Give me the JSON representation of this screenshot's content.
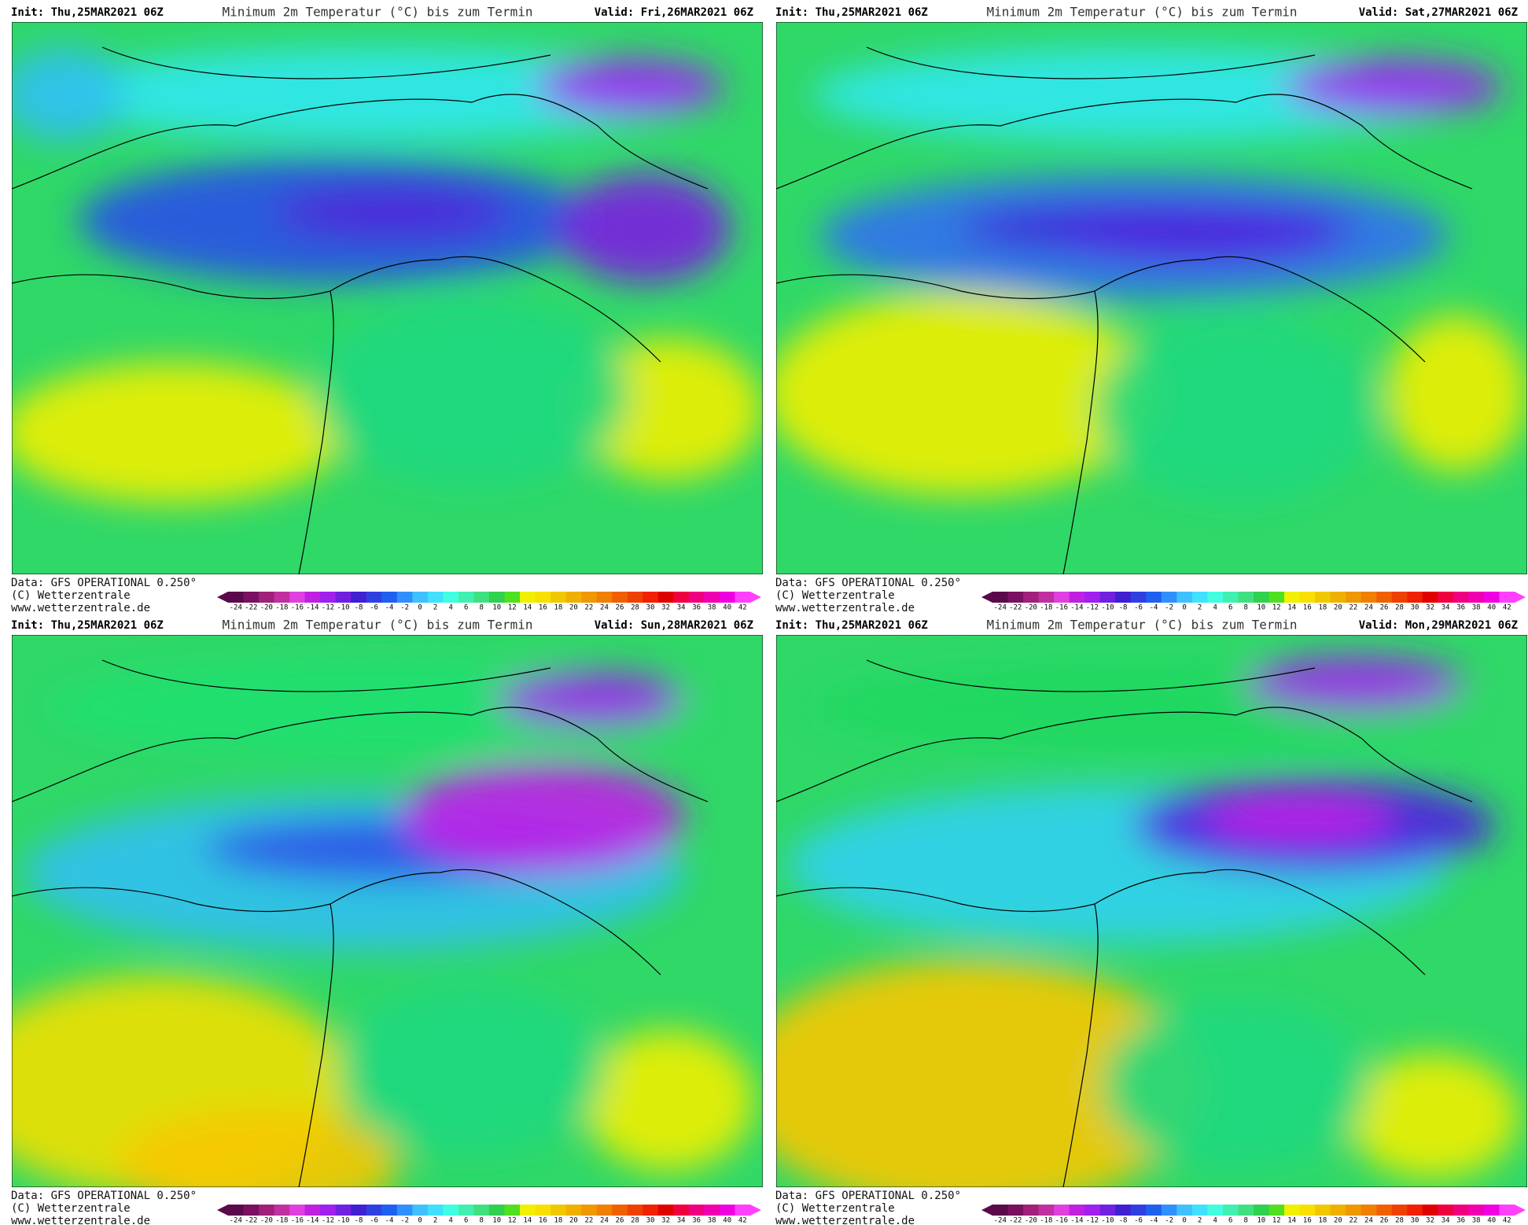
{
  "panels": [
    {
      "init": "Init: Thu,25MAR2021 06Z",
      "title": "Minimum 2m Temperatur (°C) bis zum Termin",
      "valid": "Valid: Fri,26MAR2021 06Z"
    },
    {
      "init": "Init: Thu,25MAR2021 06Z",
      "title": "Minimum 2m Temperatur (°C) bis zum Termin",
      "valid": "Valid: Sat,27MAR2021 06Z"
    },
    {
      "init": "Init: Thu,25MAR2021 06Z",
      "title": "Minimum 2m Temperatur (°C) bis zum Termin",
      "valid": "Valid: Sun,28MAR2021 06Z"
    },
    {
      "init": "Init: Thu,25MAR2021 06Z",
      "title": "Minimum 2m Temperatur (°C) bis zum Termin",
      "valid": "Valid: Mon,29MAR2021 06Z"
    }
  ],
  "footer": {
    "data": "Data: GFS OPERATIONAL 0.250°",
    "copyright": "(C) Wetterzentrale",
    "website": "www.wetterzentrale.de"
  },
  "colorbar": {
    "labels": [
      -24,
      -22,
      -20,
      -18,
      -16,
      -14,
      -12,
      -10,
      -8,
      -6,
      -4,
      -2,
      0,
      2,
      4,
      6,
      8,
      10,
      12,
      14,
      16,
      18,
      20,
      22,
      24,
      26,
      28,
      30,
      32,
      34,
      36,
      38,
      40,
      42
    ],
    "colors": [
      "#5a0a4a",
      "#7a1060",
      "#a0207a",
      "#c030a0",
      "#e040e0",
      "#c020e0",
      "#a020f0",
      "#7020e0",
      "#4020d0",
      "#3040e0",
      "#2060f0",
      "#3090ff",
      "#40c0ff",
      "#40e0ff",
      "#40ffe0",
      "#40f0b0",
      "#40e080",
      "#30d050",
      "#50e020",
      "#f0f000",
      "#f8e000",
      "#f0c800",
      "#f0b000",
      "#f09800",
      "#f08000",
      "#f06000",
      "#f04000",
      "#f02000",
      "#e00000",
      "#f00040",
      "#f00080",
      "#f000b0",
      "#f000e0",
      "#ff40ff"
    ]
  }
}
